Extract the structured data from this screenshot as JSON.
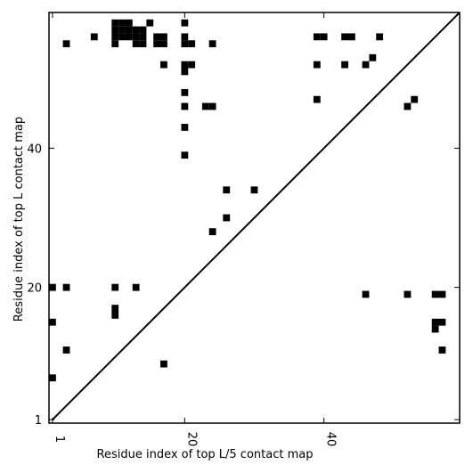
{
  "chart_data": {
    "type": "scatter",
    "xlabel": "Residue index of top L/5 contact map",
    "ylabel": "Residue index of top L contact map",
    "xlim": [
      0.5,
      59.5
    ],
    "ylim": [
      0.5,
      59.5
    ],
    "xticks": [
      {
        "value": 1,
        "label": "1"
      },
      {
        "value": 20,
        "label": "20"
      },
      {
        "value": 40,
        "label": "40"
      }
    ],
    "yticks": [
      {
        "value": 1,
        "label": "1"
      },
      {
        "value": 20,
        "label": "20"
      },
      {
        "value": 40,
        "label": "40"
      }
    ],
    "marker": "square",
    "marker_color": "#000000",
    "diagonal": true,
    "series": [
      {
        "points": [
          [
            1,
            7
          ],
          [
            1,
            15
          ],
          [
            1,
            20
          ],
          [
            3,
            11
          ],
          [
            3,
            20
          ],
          [
            3,
            55
          ],
          [
            7,
            56
          ],
          [
            10,
            16
          ],
          [
            10,
            17
          ],
          [
            10,
            20
          ],
          [
            10,
            55
          ],
          [
            10,
            56
          ],
          [
            10,
            57
          ],
          [
            10,
            58
          ],
          [
            11,
            56
          ],
          [
            11,
            57
          ],
          [
            11,
            58
          ],
          [
            12,
            56
          ],
          [
            12,
            57
          ],
          [
            12,
            58
          ],
          [
            13,
            20
          ],
          [
            13,
            55
          ],
          [
            13,
            56
          ],
          [
            13,
            57
          ],
          [
            14,
            55
          ],
          [
            14,
            56
          ],
          [
            14,
            57
          ],
          [
            15,
            58
          ],
          [
            16,
            55
          ],
          [
            16,
            56
          ],
          [
            17,
            9
          ],
          [
            17,
            52
          ],
          [
            17,
            55
          ],
          [
            17,
            56
          ],
          [
            20,
            39
          ],
          [
            20,
            43
          ],
          [
            20,
            46
          ],
          [
            20,
            48
          ],
          [
            20,
            51
          ],
          [
            20,
            52
          ],
          [
            20,
            55
          ],
          [
            20,
            56
          ],
          [
            20,
            58
          ],
          [
            21,
            52
          ],
          [
            21,
            55
          ],
          [
            23,
            46
          ],
          [
            24,
            28
          ],
          [
            24,
            46
          ],
          [
            24,
            55
          ],
          [
            26,
            30
          ],
          [
            26,
            34
          ],
          [
            30,
            34
          ],
          [
            39,
            47
          ],
          [
            39,
            52
          ],
          [
            39,
            56
          ],
          [
            40,
            56
          ],
          [
            43,
            52
          ],
          [
            43,
            56
          ],
          [
            44,
            56
          ],
          [
            46,
            19
          ],
          [
            46,
            52
          ],
          [
            47,
            53
          ],
          [
            48,
            56
          ],
          [
            52,
            19
          ],
          [
            52,
            46
          ],
          [
            53,
            47
          ],
          [
            56,
            14
          ],
          [
            56,
            15
          ],
          [
            56,
            19
          ],
          [
            57,
            11
          ],
          [
            57,
            15
          ],
          [
            57,
            19
          ]
        ]
      }
    ]
  }
}
